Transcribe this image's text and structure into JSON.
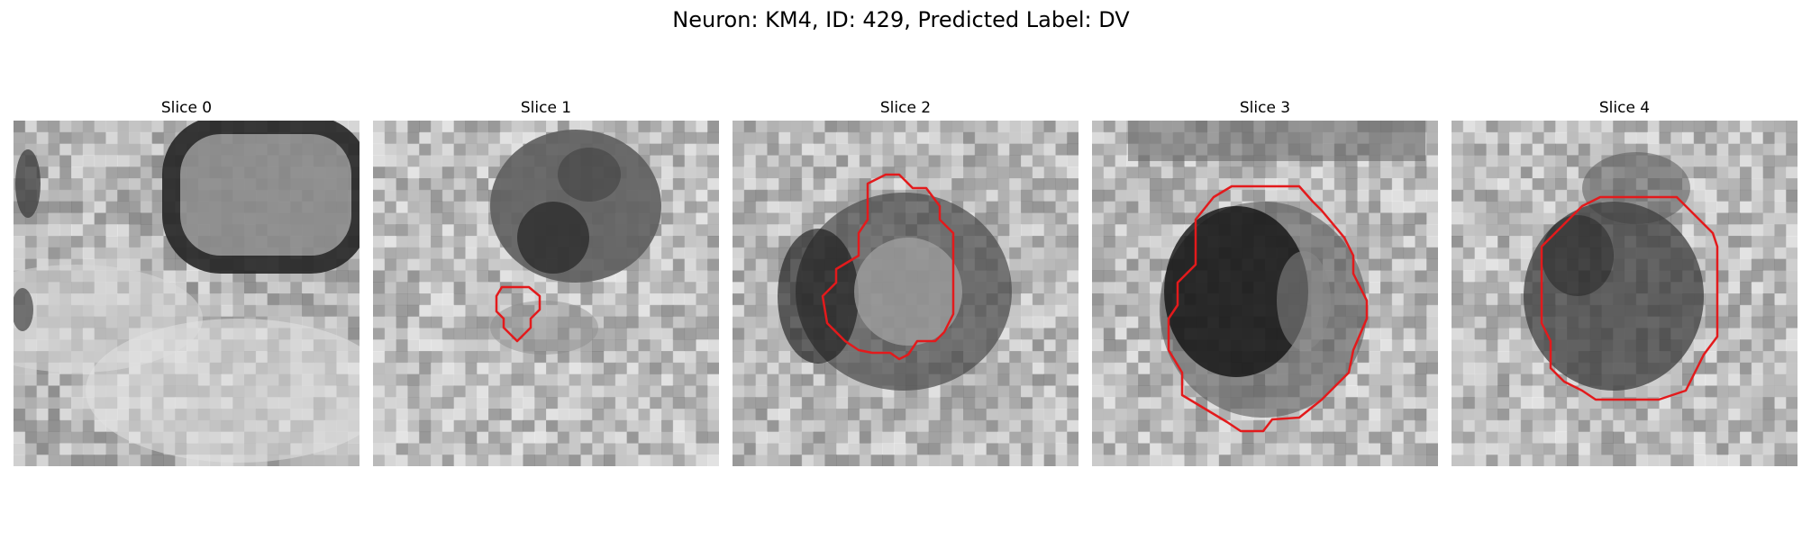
{
  "figure": {
    "title": "Neuron: KM4, ID: 429, Predicted Label: DV",
    "contour_color": "#e31a1c"
  },
  "panels": [
    {
      "title": "Slice 0"
    },
    {
      "title": "Slice 1"
    },
    {
      "title": "Slice 2"
    },
    {
      "title": "Slice 3"
    },
    {
      "title": "Slice 4"
    }
  ]
}
